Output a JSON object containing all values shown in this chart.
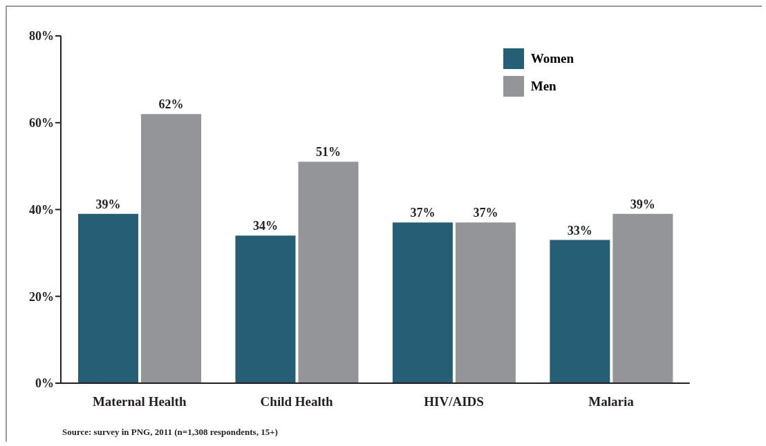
{
  "chart_data": {
    "type": "bar",
    "categories": [
      "Maternal Health",
      "Child Health",
      "HIV/AIDS",
      "Malaria"
    ],
    "series": [
      {
        "name": "Women",
        "color": "#255e75",
        "values": [
          39,
          34,
          37,
          33
        ],
        "value_labels": [
          "39%",
          "34%",
          "37%",
          "33%"
        ]
      },
      {
        "name": "Men",
        "color": "#939598",
        "values": [
          62,
          51,
          37,
          39
        ],
        "value_labels": [
          "62%",
          "51%",
          "37%",
          "39%"
        ]
      }
    ],
    "ylim": [
      0,
      80
    ],
    "yticks": [
      {
        "value": 0,
        "label": "0%"
      },
      {
        "value": 20,
        "label": "20%"
      },
      {
        "value": 40,
        "label": "40%"
      },
      {
        "value": 60,
        "label": "60%"
      },
      {
        "value": 80,
        "label": "80%"
      }
    ],
    "grid": false,
    "legend": "top right",
    "annotations": [
      "Source: survey in PNG, 2011 (n=1,308 respondents, 15+)"
    ]
  }
}
